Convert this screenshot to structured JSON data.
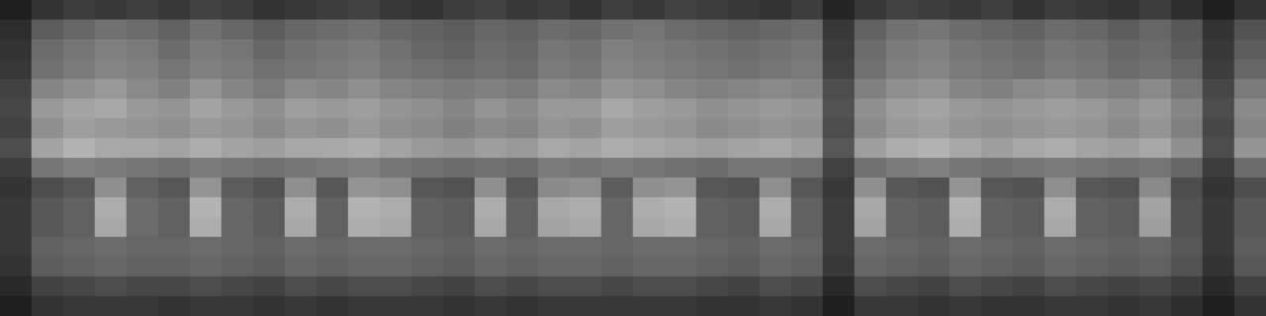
{
  "chart_data": {
    "type": "heatmap",
    "tick_labels": false,
    "grid": false,
    "value_range": [
      0,
      100
    ],
    "cells": [
      [
        12,
        20,
        24,
        22,
        25,
        22,
        26,
        24,
        20,
        22,
        24,
        26,
        22,
        20,
        24,
        26,
        22,
        24,
        20,
        25,
        22,
        26,
        24,
        22,
        20,
        24,
        14,
        22,
        26,
        24,
        22,
        25,
        20,
        24,
        22,
        20,
        24,
        18,
        12,
        20
      ],
      [
        18,
        36,
        40,
        44,
        42,
        38,
        44,
        40,
        36,
        40,
        42,
        44,
        40,
        38,
        36,
        40,
        38,
        42,
        40,
        44,
        46,
        42,
        40,
        38,
        40,
        42,
        22,
        38,
        44,
        46,
        42,
        40,
        38,
        42,
        40,
        36,
        40,
        34,
        20,
        32
      ],
      [
        20,
        42,
        46,
        50,
        48,
        42,
        48,
        46,
        40,
        44,
        46,
        48,
        44,
        40,
        38,
        42,
        40,
        46,
        44,
        50,
        48,
        46,
        44,
        42,
        44,
        46,
        24,
        42,
        48,
        50,
        46,
        44,
        42,
        46,
        44,
        40,
        42,
        36,
        22,
        36
      ],
      [
        22,
        44,
        48,
        52,
        50,
        46,
        50,
        48,
        44,
        46,
        48,
        50,
        46,
        44,
        42,
        44,
        42,
        48,
        46,
        52,
        50,
        48,
        46,
        44,
        46,
        48,
        26,
        44,
        50,
        52,
        48,
        46,
        44,
        48,
        46,
        42,
        44,
        40,
        24,
        40
      ],
      [
        26,
        52,
        56,
        60,
        54,
        50,
        58,
        52,
        48,
        54,
        52,
        56,
        52,
        50,
        48,
        50,
        48,
        54,
        52,
        58,
        56,
        52,
        50,
        52,
        54,
        52,
        30,
        50,
        56,
        58,
        52,
        50,
        54,
        56,
        52,
        50,
        54,
        46,
        28,
        48
      ],
      [
        28,
        60,
        64,
        66,
        60,
        58,
        64,
        60,
        56,
        62,
        60,
        62,
        58,
        56,
        52,
        58,
        54,
        60,
        60,
        66,
        62,
        60,
        56,
        58,
        60,
        58,
        32,
        56,
        62,
        64,
        60,
        58,
        60,
        62,
        60,
        56,
        60,
        52,
        30,
        54
      ],
      [
        26,
        56,
        62,
        60,
        58,
        56,
        60,
        58,
        54,
        58,
        56,
        60,
        56,
        54,
        50,
        54,
        52,
        58,
        56,
        62,
        60,
        58,
        54,
        56,
        58,
        56,
        30,
        54,
        60,
        62,
        58,
        56,
        58,
        60,
        58,
        54,
        58,
        50,
        28,
        52
      ],
      [
        30,
        64,
        70,
        66,
        66,
        64,
        68,
        64,
        62,
        66,
        66,
        68,
        64,
        60,
        58,
        62,
        60,
        66,
        64,
        68,
        66,
        64,
        62,
        64,
        66,
        62,
        34,
        62,
        68,
        70,
        66,
        62,
        66,
        68,
        64,
        62,
        66,
        56,
        30,
        58
      ],
      [
        24,
        46,
        50,
        48,
        46,
        44,
        48,
        46,
        44,
        46,
        48,
        50,
        46,
        44,
        42,
        44,
        42,
        48,
        46,
        48,
        46,
        44,
        42,
        46,
        46,
        44,
        26,
        44,
        48,
        50,
        46,
        44,
        46,
        48,
        46,
        44,
        46,
        40,
        24,
        42
      ],
      [
        20,
        30,
        34,
        56,
        38,
        34,
        58,
        36,
        32,
        56,
        34,
        58,
        56,
        34,
        32,
        56,
        34,
        54,
        56,
        36,
        56,
        58,
        34,
        32,
        56,
        34,
        22,
        56,
        34,
        32,
        58,
        34,
        32,
        56,
        34,
        32,
        54,
        30,
        20,
        30
      ],
      [
        22,
        34,
        38,
        68,
        42,
        38,
        70,
        40,
        36,
        68,
        38,
        70,
        68,
        38,
        36,
        68,
        38,
        66,
        68,
        40,
        68,
        70,
        38,
        36,
        68,
        38,
        24,
        66,
        38,
        36,
        70,
        38,
        36,
        68,
        38,
        36,
        64,
        32,
        22,
        34
      ],
      [
        22,
        34,
        38,
        66,
        42,
        38,
        68,
        40,
        36,
        66,
        38,
        68,
        66,
        38,
        36,
        66,
        38,
        64,
        66,
        40,
        66,
        68,
        38,
        36,
        66,
        38,
        24,
        64,
        38,
        36,
        68,
        38,
        36,
        66,
        38,
        36,
        62,
        32,
        22,
        34
      ],
      [
        22,
        38,
        40,
        42,
        40,
        40,
        42,
        40,
        38,
        42,
        40,
        42,
        42,
        40,
        38,
        42,
        40,
        42,
        42,
        40,
        42,
        42,
        40,
        38,
        42,
        40,
        24,
        42,
        40,
        38,
        42,
        40,
        38,
        42,
        40,
        38,
        40,
        34,
        22,
        36
      ],
      [
        20,
        36,
        38,
        40,
        38,
        38,
        40,
        38,
        36,
        40,
        38,
        40,
        40,
        38,
        36,
        40,
        38,
        40,
        40,
        38,
        40,
        40,
        38,
        36,
        40,
        38,
        22,
        40,
        38,
        36,
        40,
        38,
        36,
        40,
        38,
        36,
        38,
        32,
        20,
        34
      ],
      [
        16,
        26,
        28,
        30,
        28,
        28,
        30,
        28,
        26,
        30,
        28,
        30,
        30,
        28,
        26,
        30,
        28,
        30,
        30,
        28,
        30,
        30,
        28,
        26,
        30,
        28,
        16,
        30,
        28,
        26,
        30,
        28,
        26,
        30,
        28,
        26,
        28,
        24,
        16,
        26
      ],
      [
        12,
        20,
        22,
        22,
        22,
        20,
        22,
        22,
        20,
        22,
        20,
        22,
        22,
        22,
        20,
        22,
        20,
        22,
        22,
        22,
        22,
        22,
        20,
        20,
        22,
        20,
        12,
        22,
        22,
        20,
        22,
        20,
        20,
        22,
        22,
        20,
        22,
        18,
        12,
        20
      ]
    ]
  }
}
